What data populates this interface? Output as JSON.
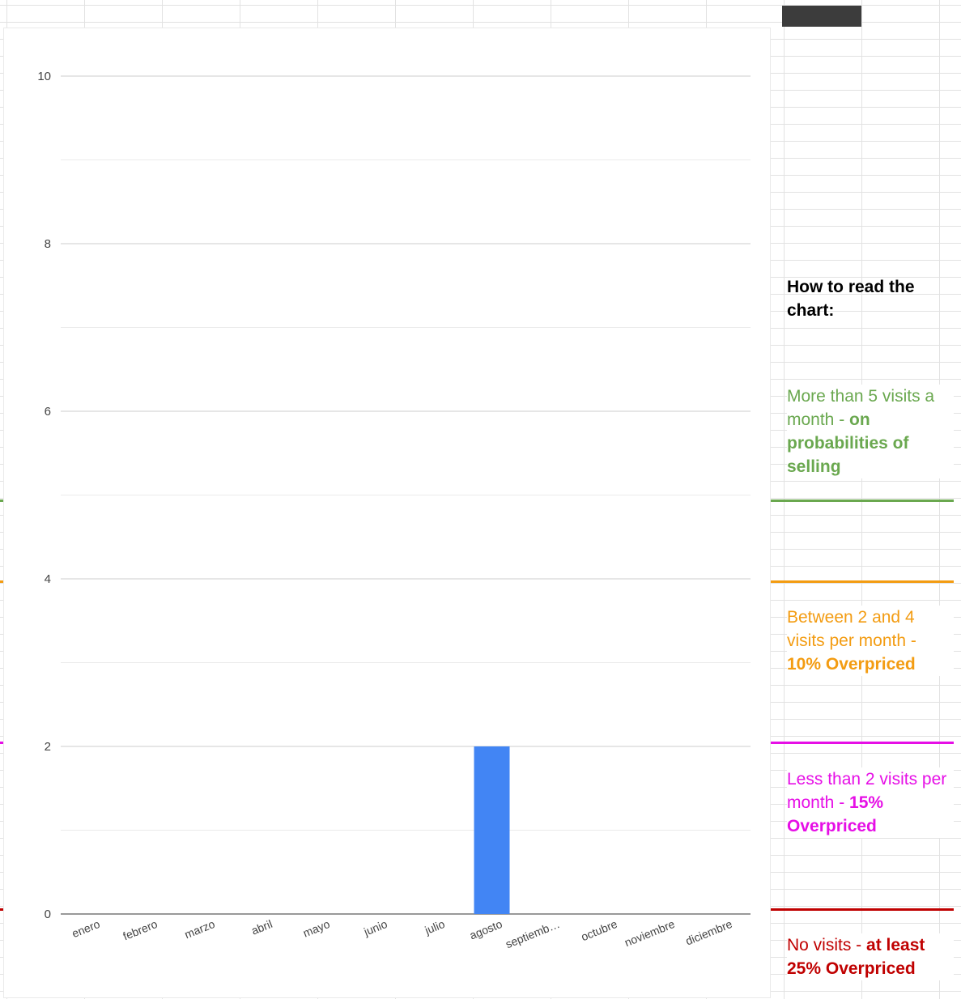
{
  "chart_data": {
    "type": "bar",
    "categories": [
      "enero",
      "febrero",
      "marzo",
      "abril",
      "mayo",
      "junio",
      "julio",
      "agosto",
      "septiemb…",
      "octubre",
      "noviembre",
      "diciembre"
    ],
    "values": [
      0,
      0,
      0,
      0,
      0,
      0,
      0,
      2,
      0,
      0,
      0,
      0
    ],
    "ylim": [
      0,
      10
    ],
    "yticks": [
      0,
      2,
      4,
      6,
      8,
      10
    ],
    "bar_color": "#4285f4",
    "grid": true,
    "title": "",
    "xlabel": "",
    "ylabel": ""
  },
  "legend": {
    "title": "How to read the chart:",
    "notes": [
      {
        "text": "More than 5 visits a month - ",
        "bold": "on probabilities of selling",
        "color": "#6aa84f"
      },
      {
        "text": "Between 2 and 4 visits per month - ",
        "bold": "10% Overpriced",
        "color": "#f39c12"
      },
      {
        "text": "Less than 2 visits per month - ",
        "bold": "15% Overpriced",
        "color": "#e60fe6"
      },
      {
        "text": "No visits - ",
        "bold": "at least 25% Overpriced",
        "color": "#c00000"
      }
    ]
  }
}
